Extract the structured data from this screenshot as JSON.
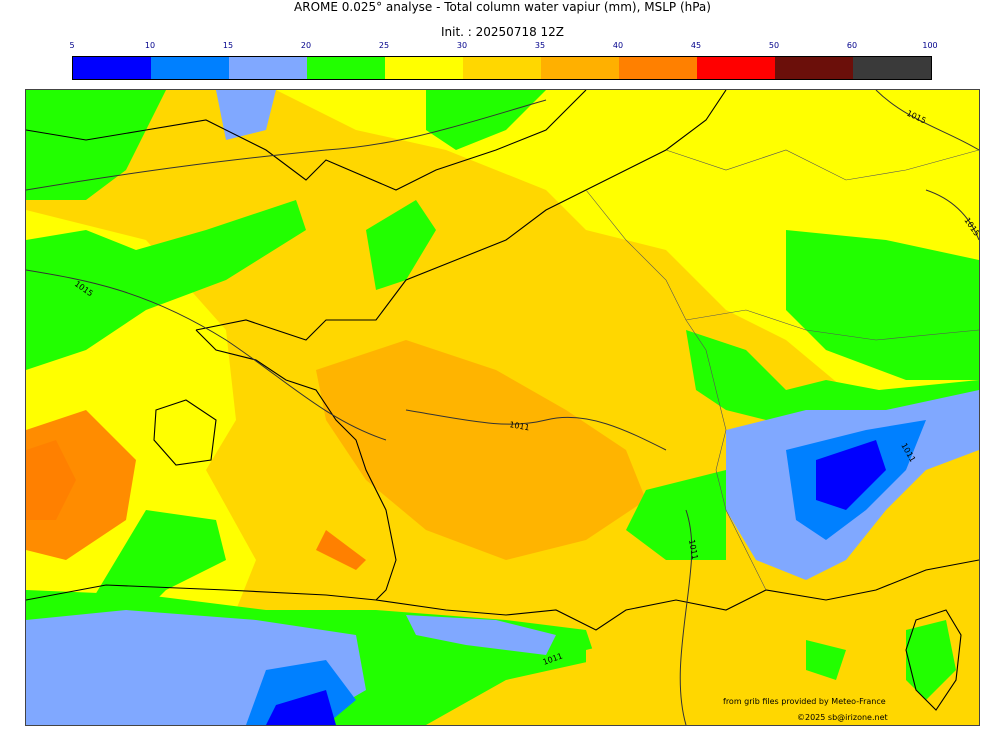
{
  "header": {
    "title": "AROME 0.025° analyse - Total column water vapiur (mm), MSLP (hPa)",
    "init": "Init. : 20250718 12Z"
  },
  "colorbar": {
    "ticks": [
      "5",
      "10",
      "15",
      "20",
      "25",
      "30",
      "35",
      "40",
      "45",
      "50",
      "60",
      "100"
    ],
    "colors": [
      "#0000ff",
      "#0080ff",
      "#80a8ff",
      "#22ff00",
      "#ffff00",
      "#ffd700",
      "#ffb000",
      "#ff8000",
      "#ff0000",
      "#6b0f0a",
      "#3a3a3a"
    ]
  },
  "map": {
    "isobar_labels": [
      "1015",
      "1015",
      "1015",
      "1011",
      "1011",
      "1011",
      "1011"
    ]
  },
  "credits": {
    "source": "from grib files provided by Meteo-France",
    "copyright": "©2025 sb@irizone.net"
  }
}
